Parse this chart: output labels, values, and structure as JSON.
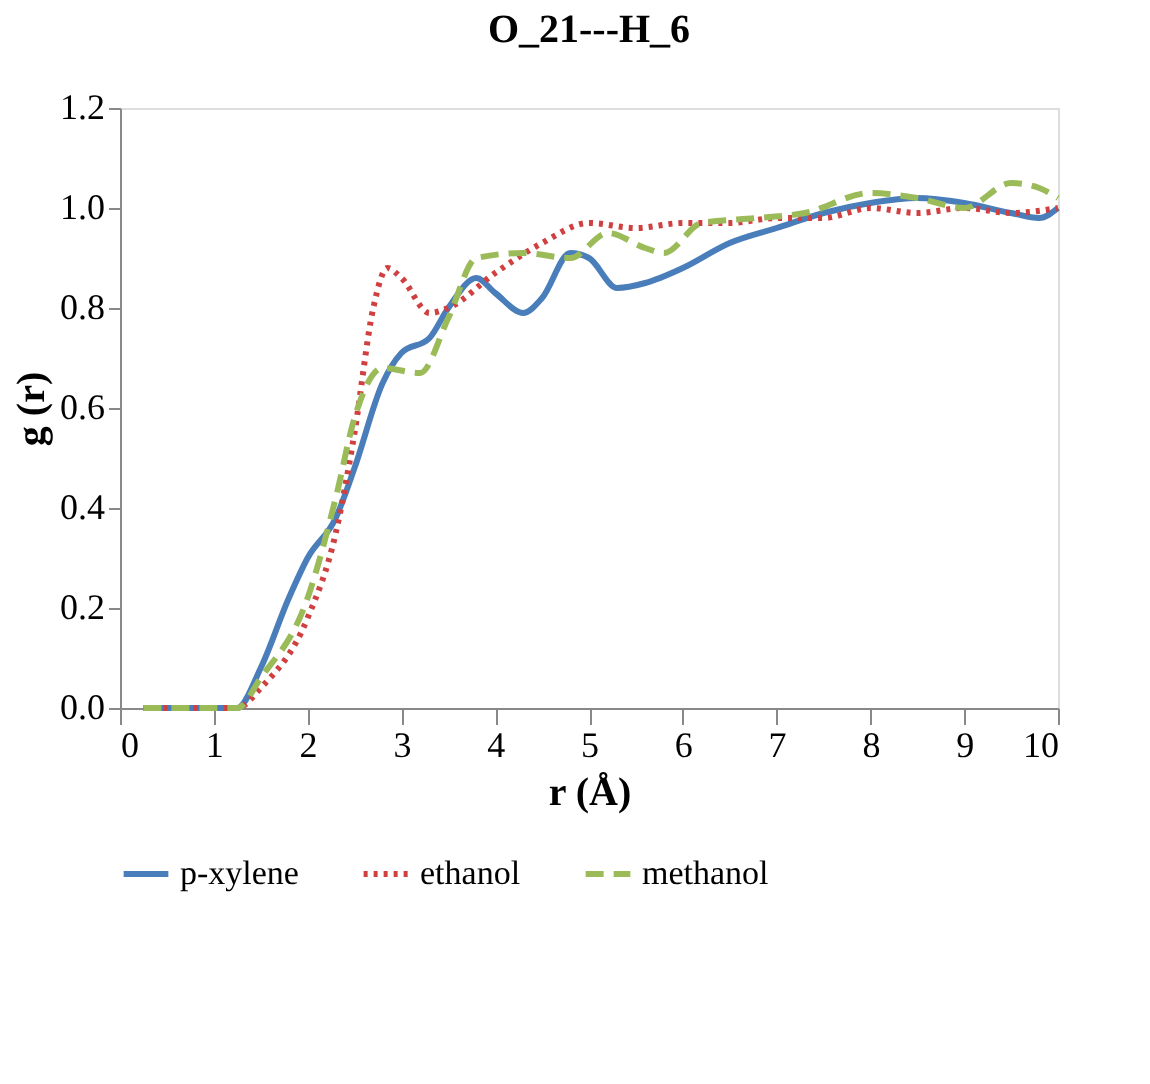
{
  "chart_data": {
    "type": "line",
    "title": "O_21---H_6",
    "xlabel": "r (Å)",
    "ylabel": "g (r)",
    "xlim": [
      0,
      10
    ],
    "xticks": [
      0,
      1,
      2,
      3,
      4,
      5,
      6,
      7,
      8,
      9,
      10
    ],
    "ylim": [
      0,
      1.2
    ],
    "yticks": [
      {
        "value": 0,
        "label": "0.0"
      },
      {
        "value": 0.2,
        "label": "0.2"
      },
      {
        "value": 0.4,
        "label": "0.4"
      },
      {
        "value": 0.6,
        "label": "0.6"
      },
      {
        "value": 0.8,
        "label": "0.8"
      },
      {
        "value": 1.0,
        "label": "1.0"
      },
      {
        "value": 1.2,
        "label": "1.2"
      }
    ],
    "grid": false,
    "legend": "bottom",
    "marker": "none",
    "series": [
      {
        "name": "p-xylene",
        "color": "#4a7ebb",
        "line_style": "solid",
        "x": [
          0.25,
          1.25,
          1.5,
          1.8,
          2.0,
          2.3,
          2.5,
          2.8,
          3.0,
          3.3,
          3.5,
          3.8,
          4.0,
          4.3,
          4.5,
          4.8,
          5.0,
          5.3,
          5.6,
          6.0,
          6.5,
          7.0,
          7.5,
          8.0,
          8.5,
          9.0,
          9.5,
          9.8,
          10
        ],
        "values": [
          0,
          0,
          0.08,
          0.22,
          0.3,
          0.38,
          0.48,
          0.65,
          0.71,
          0.74,
          0.8,
          0.86,
          0.83,
          0.79,
          0.82,
          0.91,
          0.9,
          0.84,
          0.85,
          0.88,
          0.93,
          0.96,
          0.99,
          1.01,
          1.02,
          1.01,
          0.99,
          0.98,
          1.0
        ]
      },
      {
        "name": "ethanol",
        "color": "#d04040",
        "line_style": "dotted",
        "x": [
          0.25,
          1.25,
          1.5,
          2.0,
          2.3,
          2.5,
          2.7,
          2.85,
          3.0,
          3.3,
          3.5,
          4.0,
          4.5,
          5.0,
          5.5,
          6.0,
          6.5,
          7.0,
          7.5,
          8.0,
          8.5,
          9.0,
          9.5,
          10
        ],
        "values": [
          0,
          0,
          0.04,
          0.18,
          0.35,
          0.55,
          0.8,
          0.88,
          0.86,
          0.79,
          0.8,
          0.87,
          0.93,
          0.97,
          0.96,
          0.97,
          0.97,
          0.98,
          0.98,
          1.0,
          0.99,
          1.0,
          0.99,
          1.0
        ]
      },
      {
        "name": "methanol",
        "color": "#9bbb59",
        "line_style": "dashed",
        "x": [
          0.25,
          0.75,
          1.25,
          1.5,
          2.0,
          2.3,
          2.5,
          2.8,
          3.2,
          3.5,
          3.8,
          4.3,
          4.8,
          5.2,
          5.6,
          5.8,
          6.2,
          6.8,
          7.3,
          8.0,
          8.5,
          9.0,
          9.5,
          9.8,
          10
        ],
        "values": [
          0,
          0,
          0,
          0.06,
          0.22,
          0.42,
          0.58,
          0.68,
          0.67,
          0.78,
          0.9,
          0.91,
          0.9,
          0.95,
          0.92,
          0.91,
          0.97,
          0.98,
          0.99,
          1.03,
          1.02,
          1.0,
          1.05,
          1.04,
          1.02
        ]
      }
    ]
  }
}
